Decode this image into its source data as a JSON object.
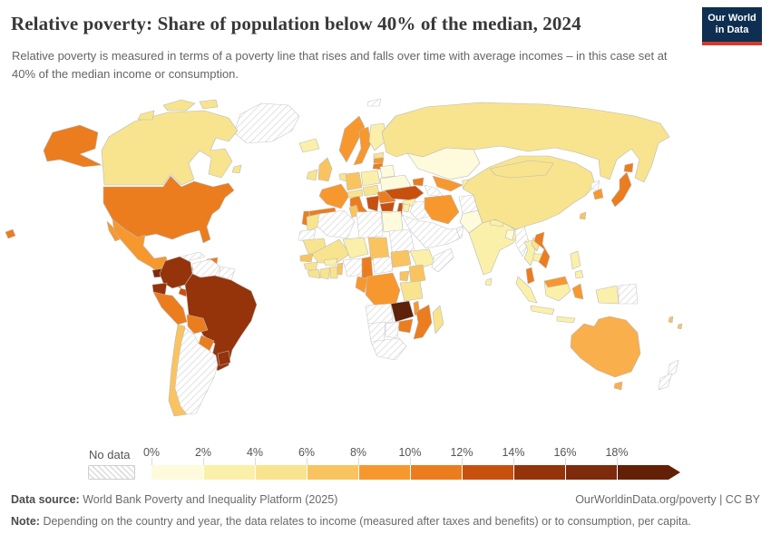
{
  "header": {
    "title": "Relative poverty: Share of population below 40% of the median, 2024",
    "subtitle": "Relative poverty is measured in terms of a poverty line that rises and falls over time with average incomes – in this case set at 40% of the median income or consumption.",
    "logo": {
      "line1": "Our World",
      "line2": "in Data",
      "bg_color": "#0E2F51",
      "accent_color": "#D4392C"
    }
  },
  "legend": {
    "no_data_label": "No data",
    "ticks": [
      "0%",
      "2%",
      "4%",
      "6%",
      "8%",
      "10%",
      "12%",
      "14%",
      "16%",
      "18%"
    ],
    "colors": [
      "#FEFBDC",
      "#FBF0A9",
      "#F8E48E",
      "#F9C45F",
      "#F7982F",
      "#EB7D1F",
      "#C8500F",
      "#95330B",
      "#7E2A0C",
      "#641F07"
    ]
  },
  "map": {
    "type": "choropleth",
    "metric": "Share of population below 40% of median income or consumption",
    "year": "2024",
    "palette": {
      "b1": "#FEFBDC",
      "b2": "#FBF0A9",
      "b3": "#F8E48E",
      "b4": "#F9C45F",
      "b5": "#F7982F",
      "b6": "#EB7D1F",
      "b7": "#C8500F",
      "b8": "#95330B",
      "b9": "#7E2A0C",
      "b10": "#5E2109",
      "b45": "#F9AF4B"
    },
    "regions": [
      {
        "id": "greenland",
        "fill": "nodata"
      },
      {
        "id": "canada",
        "fill": "b3"
      },
      {
        "id": "canada-islands-a",
        "fill": "b3"
      },
      {
        "id": "canada-islands-b",
        "fill": "b3"
      },
      {
        "id": "canada-islands-c",
        "fill": "b3"
      },
      {
        "id": "newfoundland",
        "fill": "b3"
      },
      {
        "id": "alaska",
        "fill": "b6"
      },
      {
        "id": "usa",
        "fill": "b6"
      },
      {
        "id": "hawaii",
        "fill": "b6"
      },
      {
        "id": "baja",
        "fill": "b5"
      },
      {
        "id": "mexico",
        "fill": "b5"
      },
      {
        "id": "guatemala",
        "fill": "b9"
      },
      {
        "id": "honduras",
        "fill": "b7"
      },
      {
        "id": "nicaragua",
        "fill": "b6"
      },
      {
        "id": "costa-rica",
        "fill": "b7"
      },
      {
        "id": "panama",
        "fill": "b8"
      },
      {
        "id": "cuba",
        "fill": "nodata"
      },
      {
        "id": "hispaniola",
        "fill": "b6"
      },
      {
        "id": "jamaica",
        "fill": "b6"
      },
      {
        "id": "colombia",
        "fill": "b8"
      },
      {
        "id": "venezuela",
        "fill": "nodata"
      },
      {
        "id": "guianas",
        "fill": "nodata"
      },
      {
        "id": "ecuador",
        "fill": "b8"
      },
      {
        "id": "peru",
        "fill": "b6"
      },
      {
        "id": "brazil",
        "fill": "b8"
      },
      {
        "id": "bolivia",
        "fill": "b6"
      },
      {
        "id": "paraguay",
        "fill": "b6"
      },
      {
        "id": "uruguay",
        "fill": "b8"
      },
      {
        "id": "chile",
        "fill": "b4"
      },
      {
        "id": "argentina",
        "fill": "nodata"
      },
      {
        "id": "iceland",
        "fill": "b2"
      },
      {
        "id": "ireland",
        "fill": "b3"
      },
      {
        "id": "uk",
        "fill": "b4"
      },
      {
        "id": "norway",
        "fill": "b5"
      },
      {
        "id": "sweden",
        "fill": "b5"
      },
      {
        "id": "finland",
        "fill": "b2"
      },
      {
        "id": "estonia",
        "fill": "b3"
      },
      {
        "id": "latvia",
        "fill": "b5"
      },
      {
        "id": "lithuania",
        "fill": "b6"
      },
      {
        "id": "poland",
        "fill": "b2"
      },
      {
        "id": "germany",
        "fill": "b4"
      },
      {
        "id": "benelux",
        "fill": "b3"
      },
      {
        "id": "france",
        "fill": "b5"
      },
      {
        "id": "spain",
        "fill": "b6"
      },
      {
        "id": "portugal",
        "fill": "b6"
      },
      {
        "id": "italy",
        "fill": "b6"
      },
      {
        "id": "sicily",
        "fill": "b6"
      },
      {
        "id": "switzerland-austria",
        "fill": "b3"
      },
      {
        "id": "czech-hungary",
        "fill": "b3"
      },
      {
        "id": "belarus",
        "fill": "b1"
      },
      {
        "id": "ukraine",
        "fill": "b1"
      },
      {
        "id": "romania",
        "fill": "b6"
      },
      {
        "id": "bulgaria",
        "fill": "b7"
      },
      {
        "id": "serbia-balkans",
        "fill": "b7"
      },
      {
        "id": "greece",
        "fill": "b5"
      },
      {
        "id": "svalbard",
        "fill": "nodata"
      },
      {
        "id": "russia",
        "fill": "b3"
      },
      {
        "id": "kazakhstan",
        "fill": "b1"
      },
      {
        "id": "uzbekistan",
        "fill": "b5"
      },
      {
        "id": "turkmenistan",
        "fill": "nodata"
      },
      {
        "id": "kyrgyzstan-tajikistan",
        "fill": "b2"
      },
      {
        "id": "caucasus",
        "fill": "b6"
      },
      {
        "id": "turkey",
        "fill": "b7"
      },
      {
        "id": "syria",
        "fill": "b2"
      },
      {
        "id": "israel",
        "fill": "b7"
      },
      {
        "id": "jordan",
        "fill": "b2"
      },
      {
        "id": "iraq",
        "fill": "nodata"
      },
      {
        "id": "saudi-peninsula",
        "fill": "nodata"
      },
      {
        "id": "oman",
        "fill": "nodata"
      },
      {
        "id": "iran",
        "fill": "b5"
      },
      {
        "id": "afghanistan",
        "fill": "nodata"
      },
      {
        "id": "pakistan",
        "fill": "b1"
      },
      {
        "id": "egypt",
        "fill": "b1"
      },
      {
        "id": "india",
        "fill": "b2"
      },
      {
        "id": "sri-lanka",
        "fill": "b2"
      },
      {
        "id": "bangladesh",
        "fill": "b1"
      },
      {
        "id": "nepal",
        "fill": "b2"
      },
      {
        "id": "myanmar",
        "fill": "nodata"
      },
      {
        "id": "thailand",
        "fill": "b2"
      },
      {
        "id": "laos",
        "fill": "b3"
      },
      {
        "id": "cambodia",
        "fill": "b2"
      },
      {
        "id": "vietnam",
        "fill": "b6"
      },
      {
        "id": "malaysia-peninsula",
        "fill": "b6"
      },
      {
        "id": "borneo",
        "fill": "b2"
      },
      {
        "id": "malaysia-borneo",
        "fill": "b5"
      },
      {
        "id": "sumatra",
        "fill": "b2"
      },
      {
        "id": "java",
        "fill": "b2"
      },
      {
        "id": "sulawesi",
        "fill": "b5"
      },
      {
        "id": "lesser-sunda",
        "fill": "b2"
      },
      {
        "id": "west-papua",
        "fill": "b2"
      },
      {
        "id": "papua-new-guinea",
        "fill": "nodata"
      },
      {
        "id": "philippines",
        "fill": "b2"
      },
      {
        "id": "philippines-south",
        "fill": "b2"
      },
      {
        "id": "china",
        "fill": "b3"
      },
      {
        "id": "mongolia",
        "fill": "b3"
      },
      {
        "id": "north-korea",
        "fill": "nodata"
      },
      {
        "id": "south-korea",
        "fill": "b5"
      },
      {
        "id": "japan",
        "fill": "b6"
      },
      {
        "id": "hokkaido",
        "fill": "b6"
      },
      {
        "id": "taiwan",
        "fill": "b4"
      },
      {
        "id": "morocco",
        "fill": "b3"
      },
      {
        "id": "western-sahara",
        "fill": "nodata"
      },
      {
        "id": "algeria",
        "fill": "nodata"
      },
      {
        "id": "tunisia",
        "fill": "b4"
      },
      {
        "id": "libya",
        "fill": "nodata"
      },
      {
        "id": "mauritania",
        "fill": "b3"
      },
      {
        "id": "mali",
        "fill": "b3"
      },
      {
        "id": "niger",
        "fill": "b2"
      },
      {
        "id": "chad",
        "fill": "b4"
      },
      {
        "id": "sudan",
        "fill": "nodata"
      },
      {
        "id": "ethiopia",
        "fill": "b2"
      },
      {
        "id": "somalia",
        "fill": "nodata"
      },
      {
        "id": "senegal",
        "fill": "b4"
      },
      {
        "id": "guinea",
        "fill": "b3"
      },
      {
        "id": "sierra-leone-liberia",
        "fill": "b3"
      },
      {
        "id": "ivory-coast",
        "fill": "b3"
      },
      {
        "id": "ghana",
        "fill": "b3"
      },
      {
        "id": "burkina-faso",
        "fill": "b2"
      },
      {
        "id": "benin-togo",
        "fill": "b4"
      },
      {
        "id": "nigeria",
        "fill": "nodata"
      },
      {
        "id": "cameroon",
        "fill": "b6"
      },
      {
        "id": "central-african-republic",
        "fill": "nodata"
      },
      {
        "id": "south-sudan",
        "fill": "b4"
      },
      {
        "id": "drc",
        "fill": "b5"
      },
      {
        "id": "gabon-congo",
        "fill": "b5"
      },
      {
        "id": "uganda",
        "fill": "b4"
      },
      {
        "id": "kenya",
        "fill": "b4"
      },
      {
        "id": "tanzania",
        "fill": "b3"
      },
      {
        "id": "angola",
        "fill": "nodata"
      },
      {
        "id": "zambia",
        "fill": "b10"
      },
      {
        "id": "malawi",
        "fill": "b5"
      },
      {
        "id": "mozambique",
        "fill": "b6"
      },
      {
        "id": "zimbabwe",
        "fill": "b6"
      },
      {
        "id": "namibia",
        "fill": "nodata"
      },
      {
        "id": "botswana",
        "fill": "nodata"
      },
      {
        "id": "south-africa",
        "fill": "nodata"
      },
      {
        "id": "madagascar",
        "fill": "b3"
      },
      {
        "id": "australia",
        "fill": "b45"
      },
      {
        "id": "tasmania",
        "fill": "b45"
      },
      {
        "id": "new-zealand-north",
        "fill": "nodata"
      },
      {
        "id": "new-zealand-south",
        "fill": "nodata"
      },
      {
        "id": "fiji",
        "fill": "b4"
      },
      {
        "id": "vanuatu",
        "fill": "b4"
      }
    ]
  },
  "footer": {
    "source_label": "Data source:",
    "source_text": "World Bank Poverty and Inequality Platform (2025)",
    "attribution": "OurWorldinData.org/poverty | CC BY",
    "note_label": "Note:",
    "note_text": "Depending on the country and year, the data relates to income (measured after taxes and benefits) or to consumption, per capita."
  }
}
